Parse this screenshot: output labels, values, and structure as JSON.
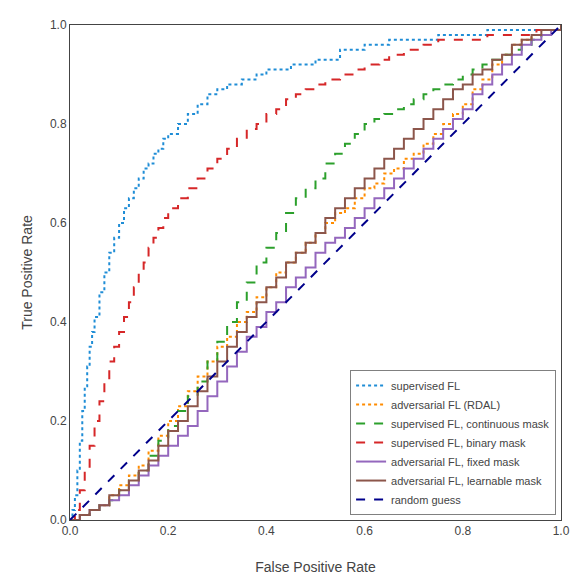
{
  "chart_data": {
    "type": "line",
    "xlabel": "False Positive Rate",
    "ylabel": "True Positive Rate",
    "xlim": [
      0.0,
      1.0
    ],
    "ylim": [
      0.0,
      1.0
    ],
    "xticks": [
      {
        "value": 0.0,
        "label": "0.0"
      },
      0.2,
      0.4,
      0.6,
      0.8,
      {
        "value": 1.0,
        "label": "1.0"
      }
    ],
    "yticks": [
      {
        "value": 0.0,
        "label": "0.0"
      },
      0.2,
      0.4,
      0.6,
      0.8,
      {
        "value": 1.0,
        "label": "1.0"
      }
    ],
    "grid": false,
    "legend": "lower right",
    "series": [
      {
        "name": "supervised FL",
        "type": "step",
        "color": "#1f8dd6",
        "line_style": "dotted",
        "x": [
          0.0,
          0.005,
          0.01,
          0.015,
          0.02,
          0.025,
          0.03,
          0.035,
          0.04,
          0.045,
          0.05,
          0.06,
          0.07,
          0.08,
          0.09,
          0.1,
          0.11,
          0.12,
          0.13,
          0.14,
          0.15,
          0.16,
          0.17,
          0.18,
          0.19,
          0.2,
          0.22,
          0.24,
          0.26,
          0.28,
          0.3,
          0.32,
          0.35,
          0.38,
          0.4,
          0.45,
          0.5,
          0.55,
          0.6,
          0.65,
          0.7,
          0.75,
          0.8,
          0.85,
          0.9,
          0.95,
          1.0
        ],
        "values": [
          0.0,
          0.02,
          0.05,
          0.1,
          0.16,
          0.22,
          0.27,
          0.31,
          0.35,
          0.38,
          0.41,
          0.46,
          0.5,
          0.54,
          0.57,
          0.6,
          0.63,
          0.65,
          0.67,
          0.69,
          0.71,
          0.72,
          0.74,
          0.75,
          0.77,
          0.78,
          0.8,
          0.82,
          0.84,
          0.86,
          0.87,
          0.88,
          0.89,
          0.9,
          0.91,
          0.92,
          0.93,
          0.95,
          0.96,
          0.97,
          0.97,
          0.98,
          0.98,
          0.99,
          0.99,
          0.99,
          1.0
        ]
      },
      {
        "name": "adversarial FL (RDAL)",
        "type": "step",
        "color": "#ff8c00",
        "line_style": "dotted",
        "x": [
          0.0,
          0.02,
          0.04,
          0.06,
          0.08,
          0.1,
          0.12,
          0.14,
          0.16,
          0.18,
          0.2,
          0.22,
          0.24,
          0.26,
          0.28,
          0.3,
          0.32,
          0.34,
          0.36,
          0.38,
          0.4,
          0.42,
          0.44,
          0.46,
          0.48,
          0.5,
          0.52,
          0.54,
          0.56,
          0.58,
          0.6,
          0.62,
          0.64,
          0.66,
          0.68,
          0.7,
          0.72,
          0.74,
          0.76,
          0.78,
          0.8,
          0.82,
          0.84,
          0.86,
          0.88,
          0.9,
          0.92,
          0.94,
          0.96,
          1.0
        ],
        "values": [
          0.0,
          0.01,
          0.02,
          0.03,
          0.05,
          0.07,
          0.09,
          0.11,
          0.14,
          0.17,
          0.2,
          0.23,
          0.26,
          0.29,
          0.32,
          0.35,
          0.37,
          0.4,
          0.42,
          0.45,
          0.47,
          0.5,
          0.52,
          0.54,
          0.56,
          0.58,
          0.6,
          0.62,
          0.63,
          0.65,
          0.67,
          0.68,
          0.7,
          0.71,
          0.73,
          0.74,
          0.76,
          0.78,
          0.8,
          0.82,
          0.84,
          0.87,
          0.89,
          0.92,
          0.94,
          0.96,
          0.97,
          0.98,
          0.99,
          1.0
        ]
      },
      {
        "name": "supervised FL, continuous mask",
        "type": "step",
        "color": "#2ca02c",
        "line_style": "dashed",
        "x": [
          0.0,
          0.02,
          0.04,
          0.06,
          0.08,
          0.1,
          0.12,
          0.14,
          0.16,
          0.18,
          0.2,
          0.22,
          0.24,
          0.26,
          0.28,
          0.3,
          0.32,
          0.34,
          0.36,
          0.38,
          0.4,
          0.42,
          0.44,
          0.46,
          0.48,
          0.5,
          0.52,
          0.54,
          0.56,
          0.58,
          0.6,
          0.62,
          0.64,
          0.66,
          0.68,
          0.7,
          0.72,
          0.74,
          0.76,
          0.78,
          0.8,
          0.82,
          0.84,
          0.86,
          0.88,
          0.9,
          0.92,
          0.94,
          0.96,
          0.98,
          1.0
        ],
        "values": [
          0.0,
          0.01,
          0.02,
          0.03,
          0.04,
          0.06,
          0.08,
          0.1,
          0.13,
          0.16,
          0.19,
          0.22,
          0.25,
          0.28,
          0.32,
          0.36,
          0.4,
          0.44,
          0.48,
          0.52,
          0.55,
          0.58,
          0.62,
          0.65,
          0.67,
          0.69,
          0.72,
          0.74,
          0.76,
          0.78,
          0.8,
          0.81,
          0.82,
          0.83,
          0.84,
          0.85,
          0.86,
          0.87,
          0.88,
          0.89,
          0.9,
          0.91,
          0.92,
          0.93,
          0.94,
          0.95,
          0.96,
          0.97,
          0.98,
          0.99,
          1.0
        ]
      },
      {
        "name": "supervised FL, binary mask",
        "type": "step",
        "color": "#d62728",
        "line_style": "dashed",
        "x": [
          0.0,
          0.01,
          0.02,
          0.03,
          0.04,
          0.05,
          0.06,
          0.07,
          0.08,
          0.09,
          0.1,
          0.11,
          0.12,
          0.13,
          0.14,
          0.15,
          0.16,
          0.17,
          0.18,
          0.19,
          0.2,
          0.22,
          0.24,
          0.26,
          0.28,
          0.3,
          0.32,
          0.34,
          0.36,
          0.38,
          0.4,
          0.42,
          0.44,
          0.46,
          0.48,
          0.5,
          0.52,
          0.55,
          0.58,
          0.6,
          0.63,
          0.65,
          0.68,
          0.72,
          0.75,
          0.8,
          0.85,
          0.9,
          0.95,
          1.0
        ],
        "values": [
          0.0,
          0.02,
          0.06,
          0.1,
          0.15,
          0.2,
          0.24,
          0.28,
          0.32,
          0.35,
          0.38,
          0.41,
          0.44,
          0.47,
          0.5,
          0.52,
          0.55,
          0.57,
          0.59,
          0.61,
          0.63,
          0.65,
          0.67,
          0.69,
          0.71,
          0.73,
          0.75,
          0.77,
          0.79,
          0.8,
          0.82,
          0.83,
          0.85,
          0.86,
          0.87,
          0.88,
          0.89,
          0.9,
          0.91,
          0.92,
          0.93,
          0.94,
          0.95,
          0.96,
          0.97,
          0.97,
          0.98,
          0.98,
          0.99,
          1.0
        ]
      },
      {
        "name": "adversarial FL, fixed mask",
        "type": "step",
        "color": "#9467bd",
        "line_style": "solid",
        "x": [
          0.0,
          0.02,
          0.04,
          0.06,
          0.08,
          0.1,
          0.12,
          0.14,
          0.16,
          0.18,
          0.2,
          0.22,
          0.24,
          0.26,
          0.28,
          0.3,
          0.32,
          0.34,
          0.36,
          0.38,
          0.4,
          0.42,
          0.44,
          0.46,
          0.48,
          0.5,
          0.52,
          0.54,
          0.56,
          0.58,
          0.6,
          0.62,
          0.64,
          0.66,
          0.68,
          0.7,
          0.72,
          0.74,
          0.76,
          0.78,
          0.8,
          0.82,
          0.84,
          0.86,
          0.88,
          0.9,
          0.92,
          0.94,
          0.96,
          0.98,
          1.0
        ],
        "values": [
          0.0,
          0.01,
          0.02,
          0.03,
          0.04,
          0.05,
          0.07,
          0.09,
          0.11,
          0.13,
          0.15,
          0.17,
          0.19,
          0.22,
          0.25,
          0.28,
          0.31,
          0.34,
          0.37,
          0.39,
          0.42,
          0.44,
          0.47,
          0.49,
          0.51,
          0.54,
          0.56,
          0.57,
          0.59,
          0.61,
          0.63,
          0.65,
          0.67,
          0.69,
          0.71,
          0.73,
          0.75,
          0.77,
          0.79,
          0.81,
          0.83,
          0.86,
          0.88,
          0.9,
          0.92,
          0.94,
          0.96,
          0.97,
          0.98,
          0.99,
          1.0
        ]
      },
      {
        "name": "adversarial FL, learnable mask",
        "type": "step",
        "color": "#8c564b",
        "line_style": "solid",
        "x": [
          0.0,
          0.02,
          0.04,
          0.06,
          0.08,
          0.1,
          0.12,
          0.14,
          0.16,
          0.18,
          0.2,
          0.22,
          0.24,
          0.26,
          0.28,
          0.3,
          0.32,
          0.34,
          0.36,
          0.38,
          0.4,
          0.42,
          0.44,
          0.46,
          0.48,
          0.5,
          0.52,
          0.54,
          0.56,
          0.58,
          0.6,
          0.62,
          0.64,
          0.66,
          0.68,
          0.7,
          0.72,
          0.74,
          0.76,
          0.78,
          0.8,
          0.82,
          0.84,
          0.86,
          0.88,
          0.9,
          0.92,
          0.94,
          0.96,
          1.0
        ],
        "values": [
          0.0,
          0.01,
          0.02,
          0.03,
          0.05,
          0.06,
          0.08,
          0.1,
          0.12,
          0.15,
          0.18,
          0.2,
          0.23,
          0.26,
          0.29,
          0.32,
          0.35,
          0.38,
          0.41,
          0.44,
          0.47,
          0.49,
          0.52,
          0.54,
          0.56,
          0.58,
          0.61,
          0.63,
          0.65,
          0.67,
          0.69,
          0.71,
          0.73,
          0.75,
          0.77,
          0.79,
          0.81,
          0.83,
          0.85,
          0.87,
          0.88,
          0.9,
          0.91,
          0.93,
          0.94,
          0.96,
          0.97,
          0.98,
          0.99,
          1.0
        ]
      },
      {
        "name": "random guess",
        "type": "line",
        "color": "#00008b",
        "line_style": "dashed",
        "x": [
          0.0,
          1.0
        ],
        "values": [
          0.0,
          1.0
        ]
      }
    ]
  }
}
